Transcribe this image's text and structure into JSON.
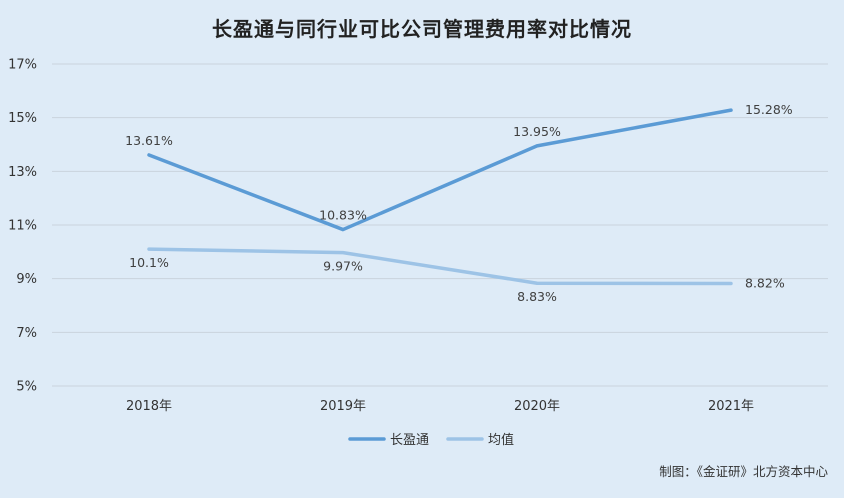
{
  "chart_data": {
    "type": "line",
    "title": "长盈通与同行业可比公司管理费用率对比情况",
    "categories": [
      "2018年",
      "2019年",
      "2020年",
      "2021年"
    ],
    "ylim": [
      5,
      17
    ],
    "yticks": [
      5,
      7,
      9,
      11,
      13,
      15,
      17
    ],
    "ytick_labels": [
      "5%",
      "7%",
      "9%",
      "11%",
      "13%",
      "15%",
      "17%"
    ],
    "grid": true,
    "legend_position": "bottom",
    "series": [
      {
        "name": "长盈通",
        "values": [
          13.61,
          10.83,
          13.95,
          15.28
        ],
        "labels": [
          "13.61%",
          "10.83%",
          "13.95%",
          "15.28%"
        ],
        "color": "#5b9bd5"
      },
      {
        "name": "均值",
        "values": [
          10.1,
          9.97,
          8.83,
          8.82
        ],
        "labels": [
          "10.1%",
          "9.97%",
          "8.83%",
          "8.82%"
        ],
        "color": "#9dc3e6"
      }
    ]
  },
  "footer": {
    "credit": "制图：《金证研》北方资本中心"
  }
}
